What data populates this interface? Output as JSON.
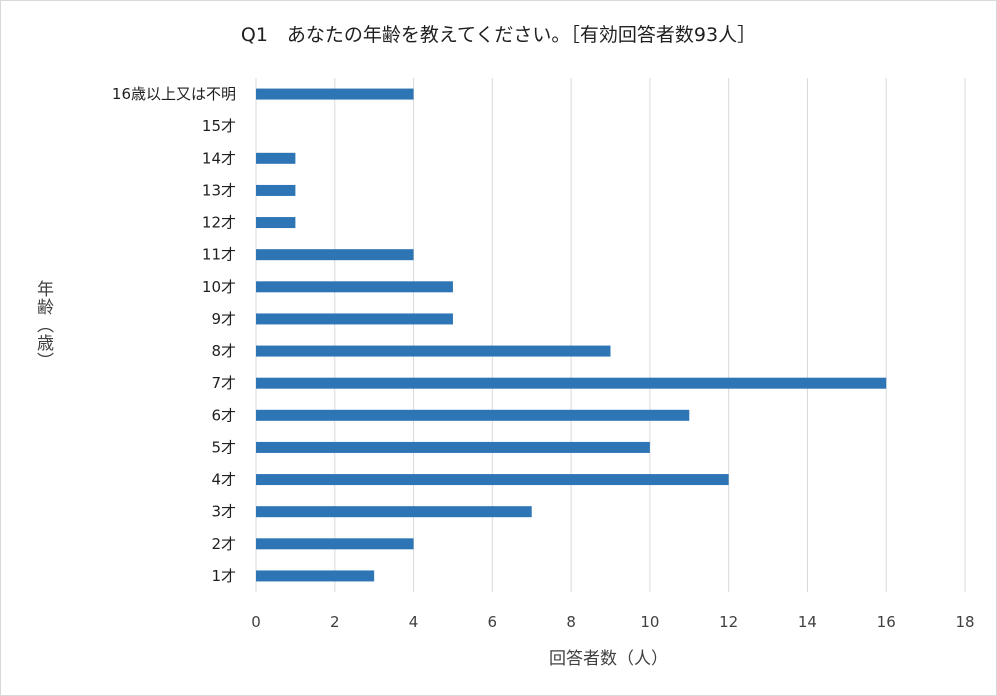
{
  "chart_data": {
    "type": "bar",
    "orientation": "horizontal",
    "title": "Q1　あなたの年齢を教えてください。［有効回答者数93人］",
    "xlabel": "回答者数（人）",
    "ylabel": "年齢（歳）",
    "categories": [
      "1才",
      "2才",
      "3才",
      "4才",
      "5才",
      "6才",
      "7才",
      "8才",
      "9才",
      "10才",
      "11才",
      "12才",
      "13才",
      "14才",
      "15才",
      "16歳以上又は不明"
    ],
    "values": [
      3,
      4,
      7,
      12,
      10,
      11,
      16,
      9,
      5,
      5,
      4,
      1,
      1,
      1,
      0,
      4
    ],
    "xlim": [
      0,
      18
    ],
    "xticks": [
      "0",
      "2",
      "4",
      "6",
      "8",
      "10",
      "12",
      "14",
      "16",
      "18"
    ],
    "grid": true,
    "legend": "none",
    "bar_color": "#2e75b6",
    "grid_color": "#d9d9d9"
  }
}
